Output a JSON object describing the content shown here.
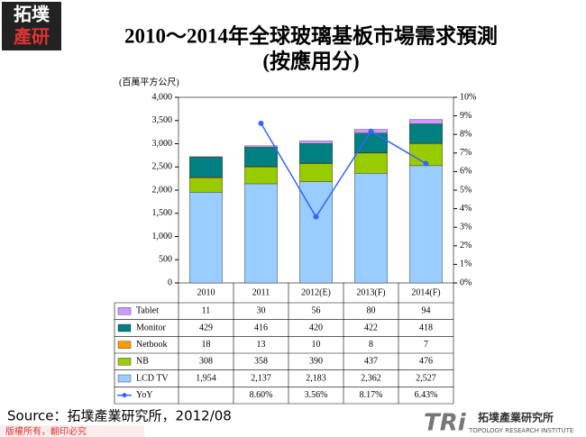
{
  "logo": {
    "top": "拓墣",
    "bottom": "產研"
  },
  "chart_data": {
    "type": "bar",
    "title": "2010～2014年全球玻璃基板市場需求預測",
    "subtitle": "(按應用分)",
    "y_label": "(百萬平方公尺)",
    "categories": [
      "2010",
      "2011",
      "2012(E)",
      "2013(F)",
      "2014(F)"
    ],
    "series": [
      {
        "name": "Tablet",
        "color": "#cc99ff",
        "values": [
          11,
          30,
          56,
          80,
          94
        ]
      },
      {
        "name": "Monitor",
        "color": "#008080",
        "values": [
          429,
          416,
          420,
          422,
          418
        ]
      },
      {
        "name": "Netbook",
        "color": "#ff9900",
        "values": [
          18,
          13,
          10,
          8,
          7
        ]
      },
      {
        "name": "NB",
        "color": "#99cc00",
        "values": [
          308,
          358,
          390,
          437,
          476
        ]
      },
      {
        "name": "LCD TV",
        "color": "#99ccff",
        "values": [
          1954,
          2137,
          2183,
          2362,
          2527
        ],
        "value_labels": [
          "1,954",
          "2,137",
          "2,183",
          "2,362",
          "2,527"
        ]
      },
      {
        "name": "YoY",
        "color": "#3366ff",
        "type": "line",
        "axis": "y2",
        "values": [
          null,
          8.6,
          3.56,
          8.17,
          6.43
        ],
        "value_labels": [
          null,
          "8.60%",
          "3.56%",
          "8.17%",
          "6.43%"
        ]
      }
    ],
    "ylim": [
      0,
      4000
    ],
    "yticks": [
      0,
      500,
      {
        "value": 1000,
        "label": "1,000"
      },
      {
        "value": 1500,
        "label": "1,500"
      },
      {
        "value": 2000,
        "label": "2,000"
      },
      {
        "value": 2500,
        "label": "2,500"
      },
      {
        "value": 3000,
        "label": "3,000"
      },
      {
        "value": 3500,
        "label": "3,500"
      },
      {
        "value": 4000,
        "label": "4,000"
      }
    ],
    "y2lim": [
      0,
      10
    ],
    "y2ticks": [
      {
        "value": 0,
        "label": "0%"
      },
      {
        "value": 1,
        "label": "1%"
      },
      {
        "value": 2,
        "label": "2%"
      },
      {
        "value": 3,
        "label": "3%"
      },
      {
        "value": 4,
        "label": "4%"
      },
      {
        "value": 5,
        "label": "5%"
      },
      {
        "value": 6,
        "label": "6%"
      },
      {
        "value": 7,
        "label": "7%"
      },
      {
        "value": 8,
        "label": "8%"
      },
      {
        "value": 9,
        "label": "9%"
      },
      {
        "value": 10,
        "label": "10%"
      }
    ]
  },
  "source": "Source：拓墣產業研究所，2012/08",
  "footer": "版權所有，翻印必究",
  "brand": {
    "mark": "TRi",
    "name": "拓墣產業研究所",
    "english": "TOPOLOGY RESEARCH INSTITUTE"
  }
}
